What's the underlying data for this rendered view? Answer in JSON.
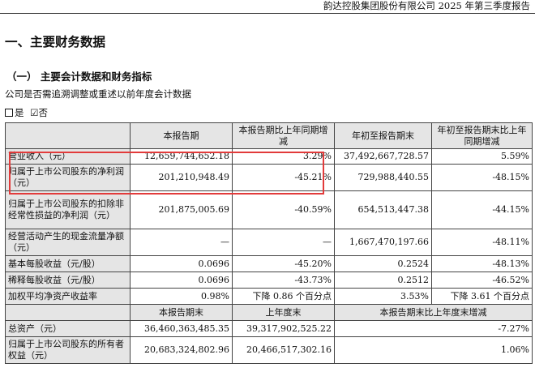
{
  "header": "韵达控股集团股份有限公司 2025 年第三季度报告",
  "section_title": "一、主要财务数据",
  "subsection_title": "（一） 主要会计数据和财务指标",
  "restate_question": "公司是否需追溯调整或重述以前年度会计数据",
  "options": {
    "yes": "是",
    "no": "否",
    "no_checked_mark": "☑"
  },
  "table1": {
    "headers": [
      "",
      "本报告期",
      "本报告期比上年同期增减",
      "年初至报告期末",
      "年初至报告期末比上年同期增减"
    ],
    "rows": [
      [
        "营业收入（元）",
        "12,659,744,652.18",
        "3.29%",
        "37,492,667,728.57",
        "5.59%"
      ],
      [
        "归属于上市公司股东的净利润（元）",
        "201,210,948.49",
        "-45.21%",
        "729,988,440.55",
        "-48.15%"
      ],
      [
        "归属于上市公司股东的扣除非经常性损益的净利润（元）",
        "201,875,005.69",
        "-40.59%",
        "654,513,447.38",
        "-44.15%"
      ],
      [
        "经营活动产生的现金流量净额（元）",
        "—",
        "—",
        "1,667,470,197.66",
        "-48.11%"
      ],
      [
        "基本每股收益（元/股）",
        "0.0696",
        "-45.20%",
        "0.2524",
        "-48.13%"
      ],
      [
        "稀释每股收益（元/股）",
        "0.0696",
        "-43.73%",
        "0.2512",
        "-46.52%"
      ],
      [
        "加权平均净资产收益率",
        "0.98%",
        "下降 0.86 个百分点",
        "3.53%",
        "下降 3.61 个百分点"
      ]
    ]
  },
  "table2": {
    "headers": [
      "",
      "本报告期末",
      "上年度末",
      "本报告期末比上年度末增减"
    ],
    "rows": [
      [
        "总资产（元）",
        "36,460,363,485.35",
        "39,317,902,525.22",
        "-7.27%"
      ],
      [
        "归属于上市公司股东的所有者权益（元）",
        "20,683,324,802.96",
        "20,466,517,302.16",
        "1.06%"
      ]
    ]
  }
}
